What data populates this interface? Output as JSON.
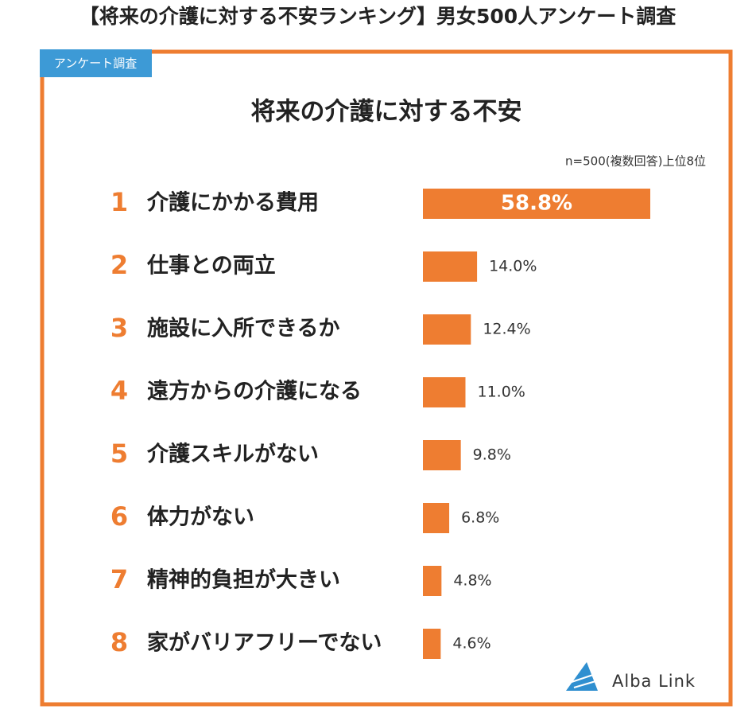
{
  "page_title": "【将来の介護に対する不安ランキング】男女500人アンケート調査",
  "badge": "アンケート調査",
  "logo": "Alba Link",
  "chart_data": {
    "type": "bar",
    "orientation": "horizontal",
    "title": "将来の介護に対する不安",
    "note": "n=500(複数回答)上位8位",
    "ranks": [
      1,
      2,
      3,
      4,
      5,
      6,
      7,
      8
    ],
    "categories": [
      "介護にかかる費用",
      "仕事との両立",
      "施設に入所できるか",
      "遠方からの介護になる",
      "介護スキルがない",
      "体力がない",
      "精神的負担が大きい",
      "家がバリアフリーでない"
    ],
    "values": [
      58.8,
      14.0,
      12.4,
      11.0,
      9.8,
      6.8,
      4.8,
      4.6
    ],
    "value_labels": [
      "58.8%",
      "14.0%",
      "12.4%",
      "11.0%",
      "9.8%",
      "6.8%",
      "4.8%",
      "4.6%"
    ],
    "color": "#ee7d31"
  }
}
